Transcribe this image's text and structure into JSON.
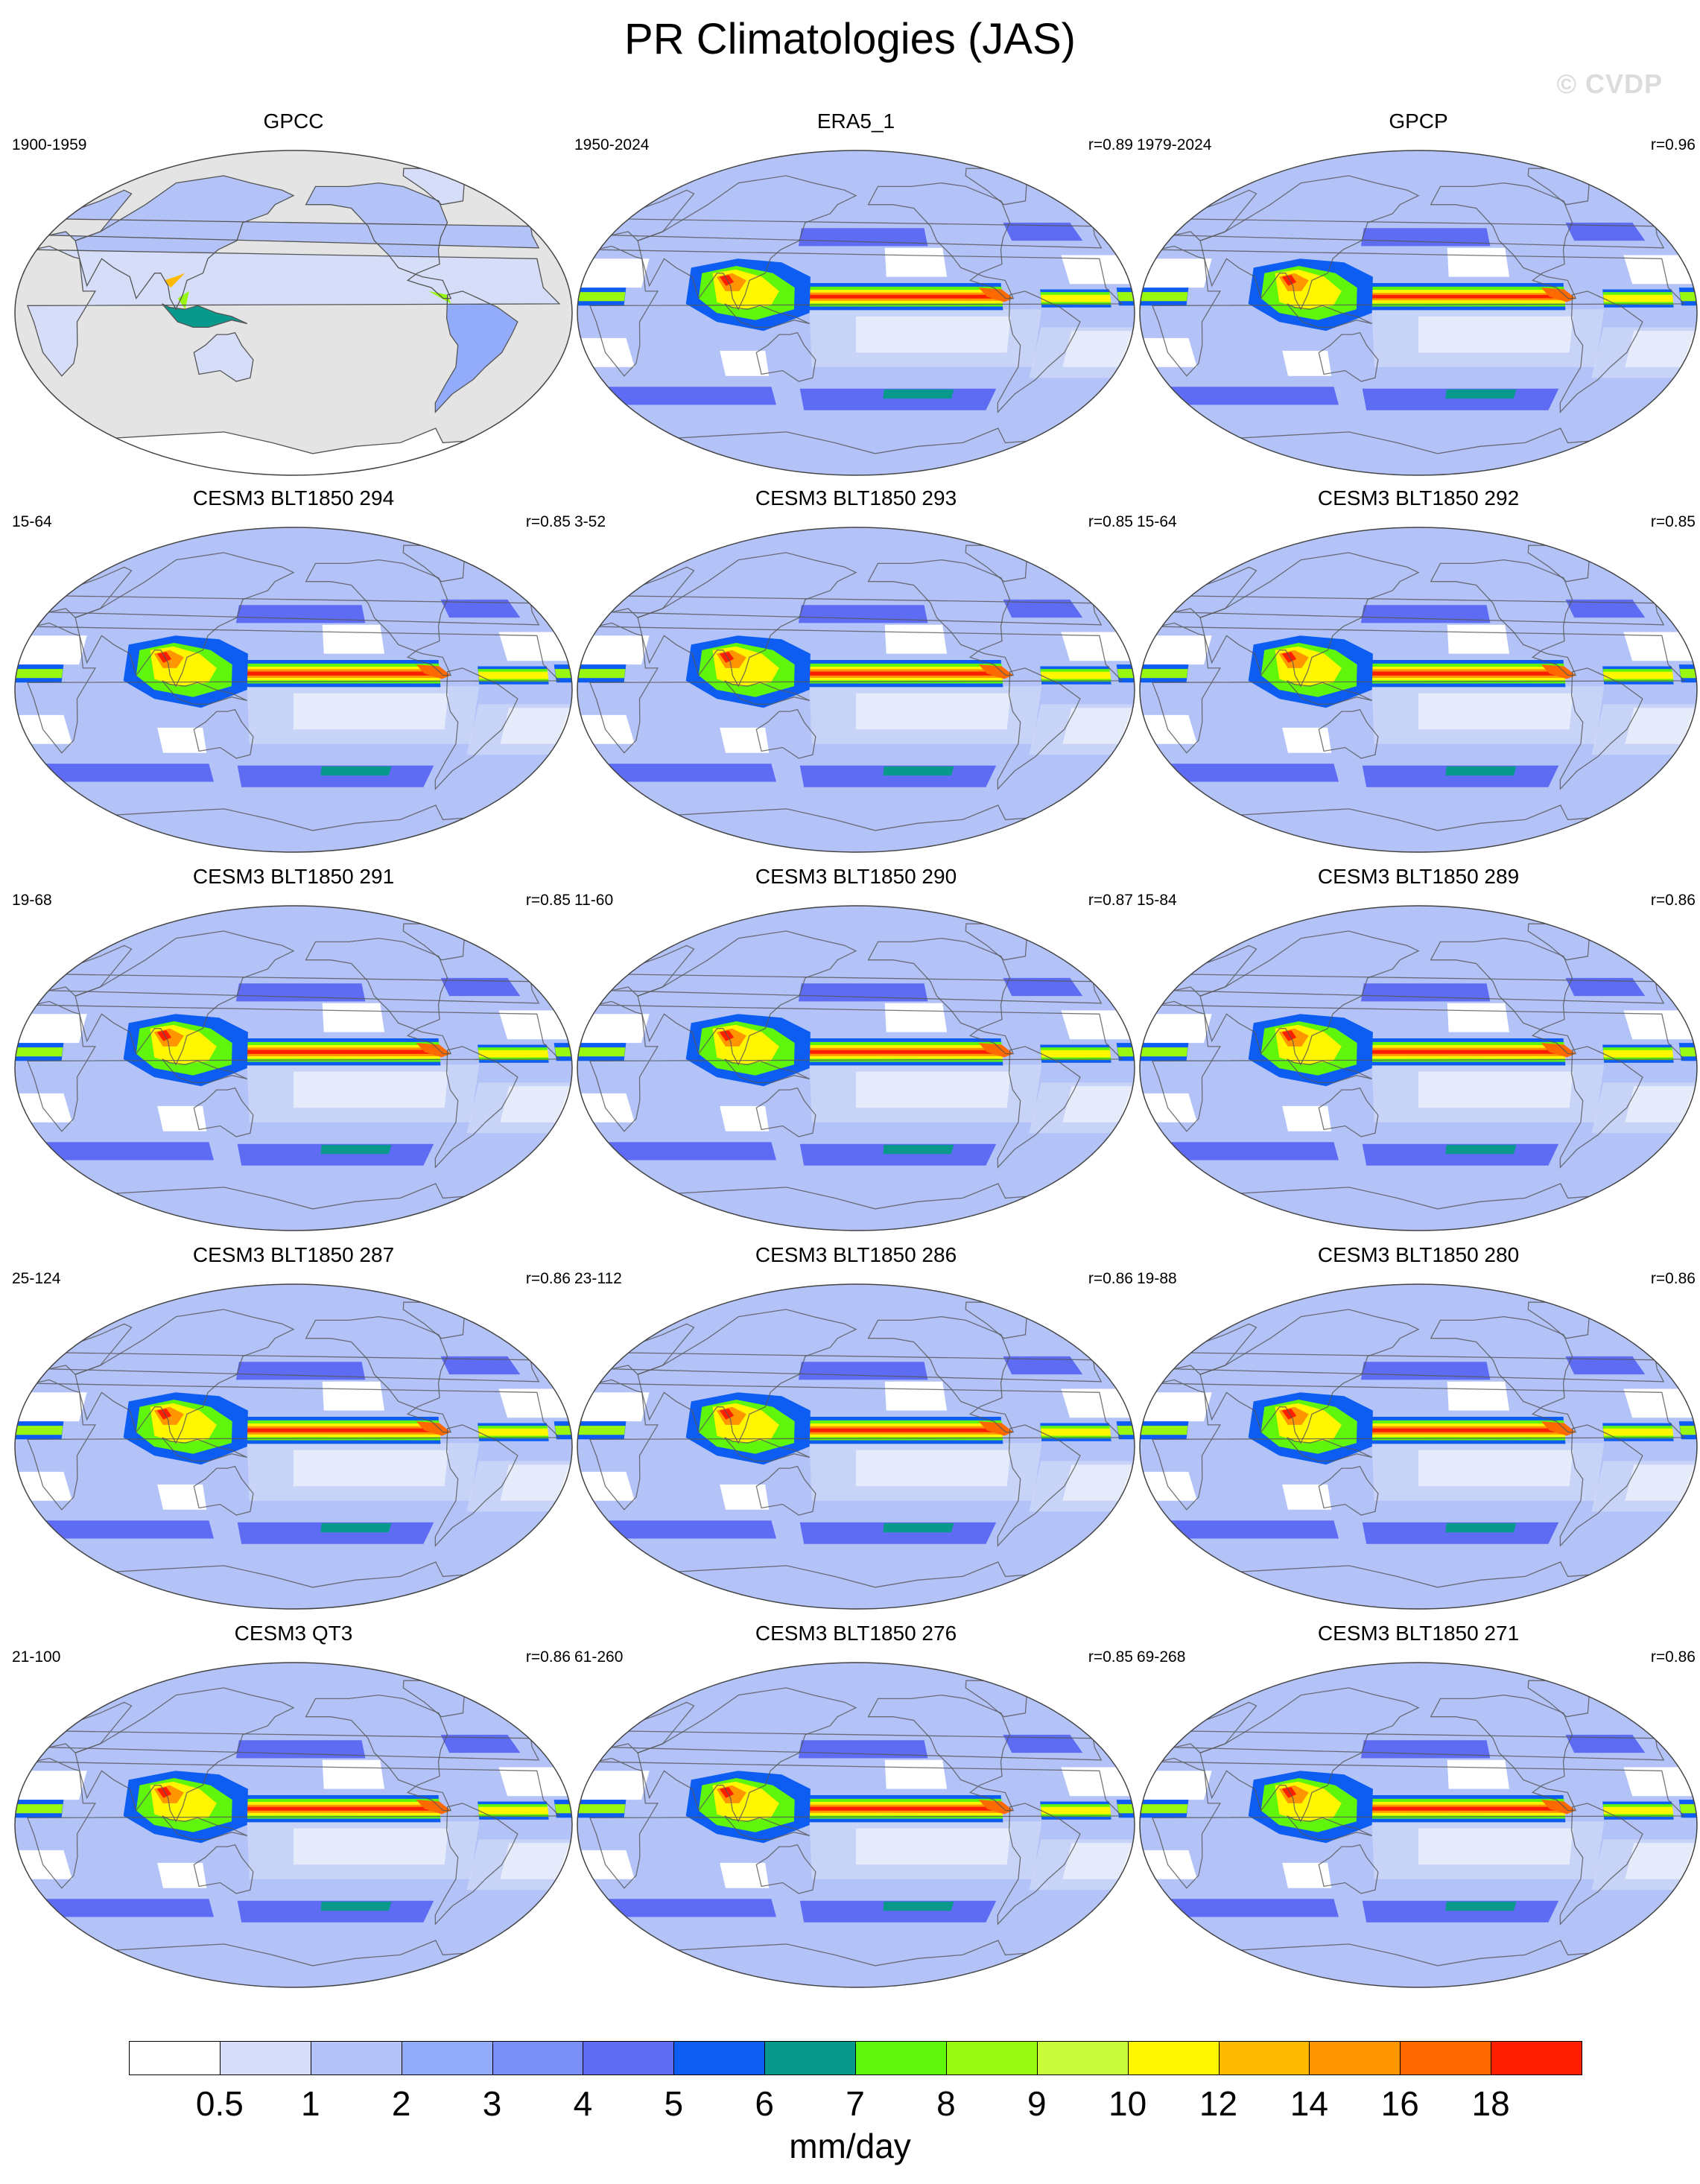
{
  "figure": {
    "title": "PR Climatologies (JAS)",
    "watermark": "© CVDP",
    "units": "mm/day",
    "projection": "Robinson (Pacific-centered)",
    "colorbar": {
      "colors": [
        "#ffffff",
        "#d5ddf8",
        "#b3c3f8",
        "#92abfa",
        "#7a90f8",
        "#5d6cf2",
        "#0d5df2",
        "#079a8c",
        "#5ff60c",
        "#98f810",
        "#c8fb3a",
        "#fff600",
        "#ffba00",
        "#ff9600",
        "#ff6a00",
        "#ff1e00"
      ],
      "tick_labels": [
        "0.5",
        "1",
        "2",
        "3",
        "4",
        "5",
        "6",
        "7",
        "8",
        "9",
        "10",
        "12",
        "14",
        "16",
        "18"
      ]
    }
  },
  "panels": [
    {
      "title": "GPCC",
      "period": "1900-1959",
      "r": "",
      "land_only": true,
      "intensity": 0.9
    },
    {
      "title": "ERA5_1",
      "period": "1950-2024",
      "r": "r=0.89",
      "land_only": false,
      "intensity": 0.95
    },
    {
      "title": "GPCP",
      "period": "1979-2024",
      "r": "r=0.96",
      "land_only": false,
      "intensity": 0.85
    },
    {
      "title": "CESM3 BLT1850 294",
      "period": "15-64",
      "r": "r=0.85",
      "land_only": false,
      "intensity": 1.0
    },
    {
      "title": "CESM3 BLT1850 293",
      "period": "3-52",
      "r": "r=0.85",
      "land_only": false,
      "intensity": 1.0
    },
    {
      "title": "CESM3 BLT1850 292",
      "period": "15-64",
      "r": "r=0.85",
      "land_only": false,
      "intensity": 1.0
    },
    {
      "title": "CESM3 BLT1850 291",
      "period": "19-68",
      "r": "r=0.85",
      "land_only": false,
      "intensity": 1.0
    },
    {
      "title": "CESM3 BLT1850 290",
      "period": "11-60",
      "r": "r=0.87",
      "land_only": false,
      "intensity": 0.95
    },
    {
      "title": "CESM3 BLT1850 289",
      "period": "15-84",
      "r": "r=0.86",
      "land_only": false,
      "intensity": 0.97
    },
    {
      "title": "CESM3 BLT1850 287",
      "period": "25-124",
      "r": "r=0.86",
      "land_only": false,
      "intensity": 0.97
    },
    {
      "title": "CESM3 BLT1850 286",
      "period": "23-112",
      "r": "r=0.86",
      "land_only": false,
      "intensity": 0.97
    },
    {
      "title": "CESM3 BLT1850 280",
      "period": "19-88",
      "r": "r=0.86",
      "land_only": false,
      "intensity": 0.97
    },
    {
      "title": "CESM3 QT3",
      "period": "21-100",
      "r": "r=0.86",
      "land_only": false,
      "intensity": 0.95
    },
    {
      "title": "CESM3 BLT1850 276",
      "period": "61-260",
      "r": "r=0.85",
      "land_only": false,
      "intensity": 0.97
    },
    {
      "title": "CESM3 BLT1850 271",
      "period": "69-268",
      "r": "r=0.86",
      "land_only": false,
      "intensity": 0.97
    }
  ]
}
